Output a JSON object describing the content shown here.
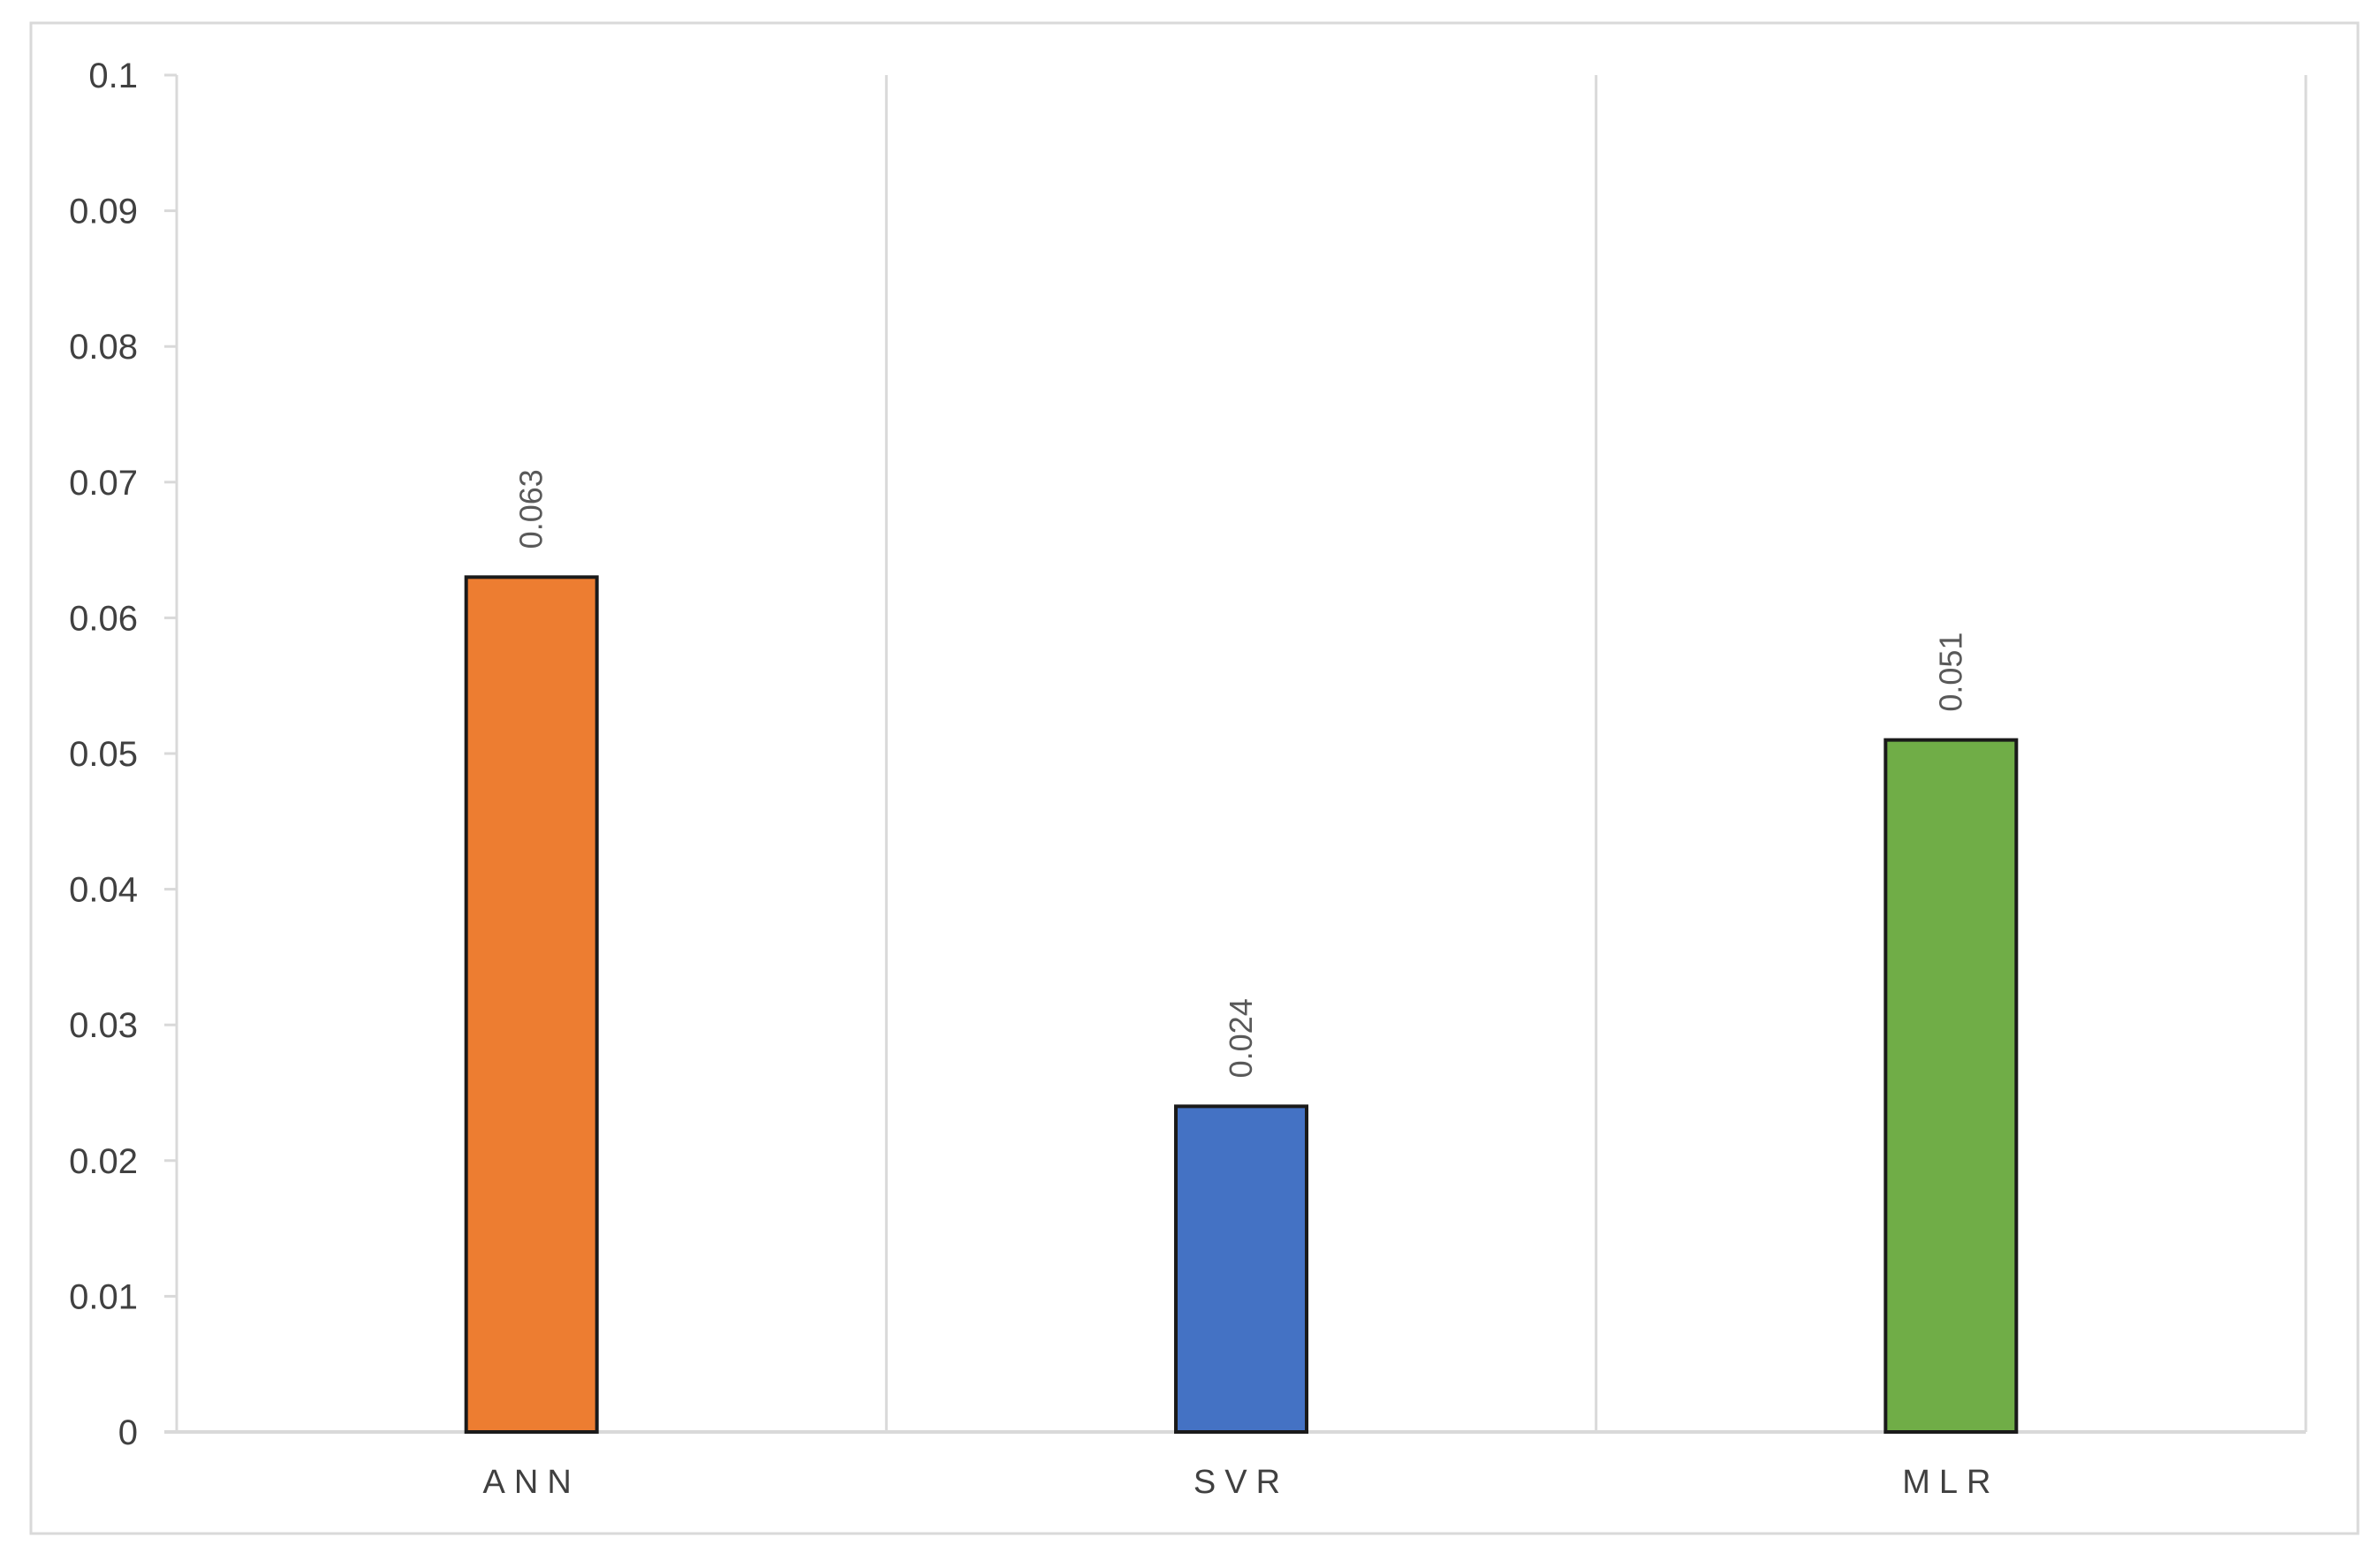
{
  "chart_data": {
    "type": "bar",
    "title": "",
    "xlabel": "",
    "ylabel": "",
    "categories": [
      "ANN",
      "SVR",
      "MLR"
    ],
    "values": [
      0.063,
      0.024,
      0.051
    ],
    "value_labels": [
      "0.063",
      "0.024",
      "0.051"
    ],
    "colors": [
      "#ed7d31",
      "#4472c4",
      "#70ad47"
    ],
    "ylim": [
      0,
      0.1
    ],
    "yticks": [
      "0",
      "0.01",
      "0.02",
      "0.03",
      "0.04",
      "0.05",
      "0.06",
      "0.07",
      "0.08",
      "0.09",
      "0.1"
    ],
    "grid": "vertical category separators",
    "legend": "none"
  }
}
